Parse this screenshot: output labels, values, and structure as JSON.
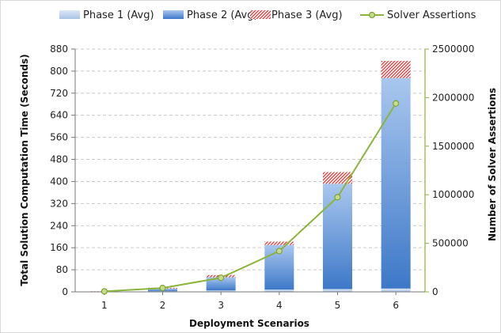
{
  "chart_data": {
    "type": "bar",
    "categories": [
      "1",
      "2",
      "3",
      "4",
      "5",
      "6"
    ],
    "xlabel": "Deployment Scenarios",
    "ylabel": "Total Solution Computation Time (Seconds)",
    "y2label": "Number of Solver Assertions",
    "ylim": [
      0,
      880
    ],
    "y_ticks": [
      0,
      80,
      160,
      240,
      320,
      400,
      480,
      560,
      640,
      720,
      800,
      880
    ],
    "y2lim": [
      0,
      2500000
    ],
    "y2_ticks": [
      0,
      500000,
      1000000,
      1500000,
      2000000,
      2500000
    ],
    "stacked": true,
    "grid": true,
    "legend_position": "top",
    "series": [
      {
        "name": "Phase 1 (Avg)",
        "kind": "bar",
        "axis": "left",
        "color": "#b7cde9",
        "values": [
          0.5,
          2,
          5,
          8,
          10,
          12
        ]
      },
      {
        "name": "Phase 2 (Avg)",
        "kind": "bar",
        "axis": "left",
        "color": "#4a86cf",
        "values": [
          1.5,
          10,
          48,
          162,
          382,
          763
        ]
      },
      {
        "name": "Phase 3 (Avg)",
        "kind": "bar",
        "axis": "left",
        "color": "#e03030",
        "pattern": "hatched",
        "values": [
          0.5,
          3,
          8,
          12,
          42,
          62
        ]
      },
      {
        "name": "Solver Assertions",
        "kind": "line",
        "axis": "right",
        "color": "#8bb43a",
        "values": [
          5000,
          40000,
          145000,
          420000,
          975000,
          1940000
        ]
      }
    ]
  }
}
